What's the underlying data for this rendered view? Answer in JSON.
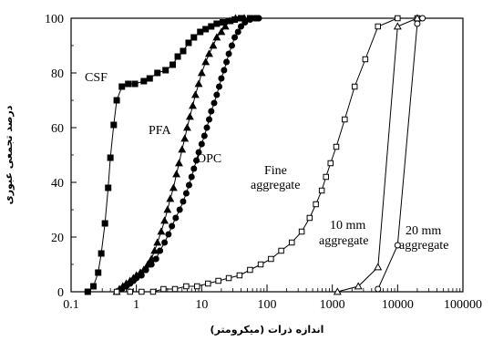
{
  "chart_data": {
    "type": "line",
    "title": "",
    "xlabel": "اندازه ذرات (میکرومتر)",
    "ylabel": "درصد تجمعی عبوری",
    "xscale": "log",
    "xlim": [
      0.1,
      100000
    ],
    "ylim": [
      0,
      100
    ],
    "grid": false,
    "x_ticks": [
      "0.1",
      "1",
      "10",
      "100",
      "1000",
      "10000",
      "100000"
    ],
    "y_ticks": [
      "0",
      "20",
      "40",
      "60",
      "80",
      "100"
    ],
    "series": [
      {
        "name": "CSF",
        "marker": "filled-square",
        "points": [
          [
            0.18,
            0
          ],
          [
            0.22,
            2
          ],
          [
            0.26,
            7
          ],
          [
            0.29,
            14
          ],
          [
            0.33,
            25
          ],
          [
            0.37,
            38
          ],
          [
            0.4,
            49
          ],
          [
            0.45,
            61
          ],
          [
            0.5,
            70
          ],
          [
            0.6,
            75
          ],
          [
            0.75,
            76
          ],
          [
            0.95,
            76
          ],
          [
            1.3,
            77
          ],
          [
            1.6,
            78
          ],
          [
            2.1,
            80
          ],
          [
            2.8,
            81
          ],
          [
            3.6,
            83
          ],
          [
            4.3,
            86
          ],
          [
            5.2,
            88
          ],
          [
            6.3,
            91
          ],
          [
            7.6,
            93
          ],
          [
            9.5,
            95
          ],
          [
            11.5,
            96
          ],
          [
            14,
            97
          ],
          [
            17,
            98
          ],
          [
            21,
            98.5
          ],
          [
            26,
            99
          ],
          [
            32,
            99.5
          ],
          [
            40,
            100
          ],
          [
            55,
            100
          ],
          [
            70,
            100
          ]
        ]
      },
      {
        "name": "PFA",
        "marker": "filled-triangle",
        "points": [
          [
            0.5,
            0
          ],
          [
            0.55,
            1
          ],
          [
            0.62,
            2
          ],
          [
            0.7,
            3
          ],
          [
            0.8,
            4
          ],
          [
            0.9,
            5
          ],
          [
            1,
            6
          ],
          [
            1.15,
            7
          ],
          [
            1.3,
            8
          ],
          [
            1.5,
            10
          ],
          [
            1.7,
            12
          ],
          [
            1.9,
            15
          ],
          [
            2.1,
            18
          ],
          [
            2.4,
            22
          ],
          [
            2.7,
            26
          ],
          [
            3,
            30
          ],
          [
            3.3,
            34
          ],
          [
            3.7,
            38
          ],
          [
            4.1,
            43
          ],
          [
            4.5,
            47
          ],
          [
            5,
            52
          ],
          [
            5.5,
            56
          ],
          [
            6,
            60
          ],
          [
            6.6,
            64
          ],
          [
            7.3,
            68
          ],
          [
            8,
            72
          ],
          [
            9,
            76
          ],
          [
            10,
            80
          ],
          [
            11.5,
            84
          ],
          [
            13,
            87
          ],
          [
            15,
            90
          ],
          [
            17,
            93
          ],
          [
            20,
            95
          ],
          [
            23,
            97
          ],
          [
            27,
            99
          ],
          [
            33,
            100
          ],
          [
            45,
            100
          ]
        ]
      },
      {
        "name": "OPC",
        "marker": "filled-circle",
        "points": [
          [
            0.5,
            0
          ],
          [
            0.6,
            1
          ],
          [
            0.7,
            2
          ],
          [
            0.8,
            3
          ],
          [
            0.9,
            4
          ],
          [
            1,
            5
          ],
          [
            1.2,
            6
          ],
          [
            1.4,
            8
          ],
          [
            1.7,
            10
          ],
          [
            2,
            12
          ],
          [
            2.3,
            15
          ],
          [
            2.7,
            18
          ],
          [
            3.1,
            21
          ],
          [
            3.5,
            24
          ],
          [
            4,
            27
          ],
          [
            4.6,
            30
          ],
          [
            5.2,
            33
          ],
          [
            5.8,
            36
          ],
          [
            6.4,
            39
          ],
          [
            7,
            42
          ],
          [
            7.6,
            45
          ],
          [
            8.3,
            48
          ],
          [
            9,
            51
          ],
          [
            10,
            54
          ],
          [
            11,
            57
          ],
          [
            12,
            60
          ],
          [
            13,
            63
          ],
          [
            14,
            66
          ],
          [
            15.5,
            69
          ],
          [
            17,
            72
          ],
          [
            18.5,
            75
          ],
          [
            20,
            78
          ],
          [
            22,
            81
          ],
          [
            24,
            84
          ],
          [
            26,
            87
          ],
          [
            29,
            90
          ],
          [
            32,
            93
          ],
          [
            36,
            95
          ],
          [
            40,
            97
          ],
          [
            46,
            98.5
          ],
          [
            55,
            99.5
          ],
          [
            65,
            100
          ],
          [
            75,
            100
          ]
        ]
      },
      {
        "name": "Fine aggregate",
        "marker": "open-square",
        "points": [
          [
            0.5,
            0
          ],
          [
            0.8,
            0
          ],
          [
            1.2,
            0
          ],
          [
            1.8,
            0
          ],
          [
            2.6,
            1
          ],
          [
            3.9,
            1
          ],
          [
            5.8,
            2
          ],
          [
            8.5,
            2
          ],
          [
            12.5,
            3
          ],
          [
            18,
            4
          ],
          [
            26,
            5
          ],
          [
            38,
            6
          ],
          [
            55,
            8
          ],
          [
            80,
            10
          ],
          [
            115,
            12
          ],
          [
            165,
            15
          ],
          [
            240,
            18
          ],
          [
            340,
            22
          ],
          [
            450,
            27
          ],
          [
            560,
            32
          ],
          [
            690,
            37
          ],
          [
            800,
            42
          ],
          [
            940,
            47
          ],
          [
            1150,
            53
          ],
          [
            1550,
            63
          ],
          [
            2200,
            75
          ],
          [
            3200,
            85
          ],
          [
            5000,
            97
          ],
          [
            10000,
            100
          ],
          [
            20000,
            100
          ]
        ]
      },
      {
        "name": "10 mm aggregate",
        "marker": "open-triangle",
        "points": [
          [
            1200,
            0
          ],
          [
            2500,
            2
          ],
          [
            5000,
            9
          ],
          [
            10000,
            97
          ],
          [
            20000,
            100
          ]
        ]
      },
      {
        "name": "20 mm aggregate",
        "marker": "open-circle",
        "points": [
          [
            5000,
            1
          ],
          [
            10000,
            17
          ],
          [
            20000,
            98
          ],
          [
            24000,
            100
          ]
        ]
      }
    ],
    "annotations": [
      {
        "text": "CSF",
        "series": "CSF"
      },
      {
        "text": "PFA",
        "series": "PFA"
      },
      {
        "text": "OPC",
        "series": "OPC"
      },
      {
        "text": "Fine",
        "series": "Fine aggregate"
      },
      {
        "text": "aggregate",
        "series": "Fine aggregate"
      },
      {
        "text": "10 mm",
        "series": "10 mm aggregate"
      },
      {
        "text": "aggregate",
        "series": "10 mm aggregate"
      },
      {
        "text": "20 mm",
        "series": "20 mm aggregate"
      },
      {
        "text": "aggregate",
        "series": "20 mm aggregate"
      }
    ]
  }
}
